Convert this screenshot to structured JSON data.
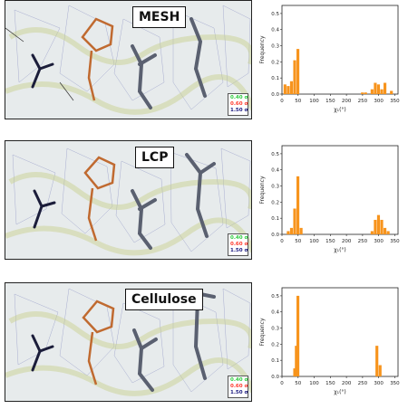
{
  "colors": {
    "bar": "#f7941d",
    "sigma_low": "#2ecc40",
    "sigma_mid": "#ff3b2f",
    "sigma_high": "#1a1a80"
  },
  "panels": [
    {
      "label": "MESH",
      "sigma_levels": [
        "0.40 σ",
        "0.60 σ",
        "1.50 σ"
      ],
      "chart_data": {
        "type": "bar",
        "xlabel": "χ₁(°)",
        "ylabel": "Frequency",
        "xlim": [
          0,
          360
        ],
        "ylim": [
          0,
          0.55
        ],
        "xticks": [
          "0",
          "50",
          "100",
          "150",
          "200",
          "250",
          "300",
          "350"
        ],
        "yticks": [
          "0.0",
          "0.1",
          "0.2",
          "0.3",
          "0.4",
          "0.5"
        ],
        "bin_width": 10,
        "bins": [
          {
            "x": 10,
            "y": 0.06
          },
          {
            "x": 20,
            "y": 0.05
          },
          {
            "x": 30,
            "y": 0.08
          },
          {
            "x": 40,
            "y": 0.21
          },
          {
            "x": 50,
            "y": 0.28
          },
          {
            "x": 250,
            "y": 0.01
          },
          {
            "x": 260,
            "y": 0.01
          },
          {
            "x": 280,
            "y": 0.03
          },
          {
            "x": 290,
            "y": 0.07
          },
          {
            "x": 300,
            "y": 0.06
          },
          {
            "x": 310,
            "y": 0.03
          },
          {
            "x": 320,
            "y": 0.07
          },
          {
            "x": 340,
            "y": 0.02
          }
        ]
      }
    },
    {
      "label": "LCP",
      "sigma_levels": [
        "0.40 σ",
        "0.60 σ",
        "1.50 σ"
      ],
      "chart_data": {
        "type": "bar",
        "xlabel": "χ₁(°)",
        "ylabel": "Frequency",
        "xlim": [
          0,
          360
        ],
        "ylim": [
          0,
          0.55
        ],
        "xticks": [
          "0",
          "50",
          "100",
          "150",
          "200",
          "250",
          "300",
          "350"
        ],
        "yticks": [
          "0.0",
          "0.1",
          "0.2",
          "0.3",
          "0.4",
          "0.5"
        ],
        "bin_width": 10,
        "bins": [
          {
            "x": 20,
            "y": 0.02
          },
          {
            "x": 30,
            "y": 0.04
          },
          {
            "x": 40,
            "y": 0.16
          },
          {
            "x": 50,
            "y": 0.36
          },
          {
            "x": 60,
            "y": 0.04
          },
          {
            "x": 280,
            "y": 0.02
          },
          {
            "x": 290,
            "y": 0.09
          },
          {
            "x": 300,
            "y": 0.12
          },
          {
            "x": 310,
            "y": 0.09
          },
          {
            "x": 320,
            "y": 0.04
          },
          {
            "x": 330,
            "y": 0.02
          }
        ]
      }
    },
    {
      "label": "Cellulose",
      "sigma_levels": [
        "0.40 σ",
        "0.60 σ",
        "1.50 σ"
      ],
      "chart_data": {
        "type": "bar",
        "xlabel": "χ₁(°)",
        "ylabel": "Frequency",
        "xlim": [
          0,
          360
        ],
        "ylim": [
          0,
          0.55
        ],
        "xticks": [
          "0",
          "50",
          "100",
          "150",
          "200",
          "250",
          "300",
          "350"
        ],
        "yticks": [
          "0.0",
          "0.1",
          "0.2",
          "0.3",
          "0.4",
          "0.5"
        ],
        "bin_width": 10,
        "bins": [
          {
            "x": 40,
            "y": 0.05
          },
          {
            "x": 45,
            "y": 0.19
          },
          {
            "x": 50,
            "y": 0.5
          },
          {
            "x": 295,
            "y": 0.19
          },
          {
            "x": 305,
            "y": 0.07
          }
        ]
      }
    }
  ]
}
